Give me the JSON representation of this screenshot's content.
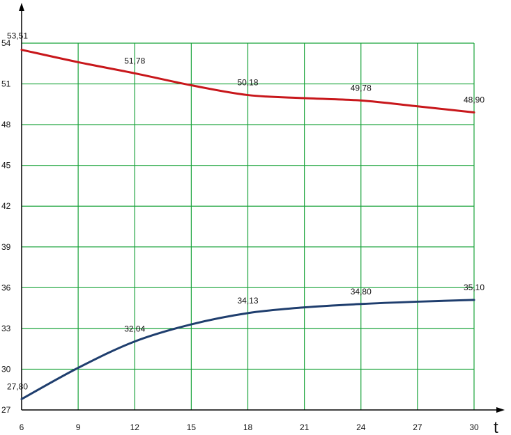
{
  "chart_data": {
    "type": "line",
    "xlabel": "t",
    "ylabel": "",
    "xlim": [
      6,
      30
    ],
    "ylim": [
      27,
      54
    ],
    "x_ticks": [
      6,
      9,
      12,
      15,
      18,
      21,
      24,
      27,
      30
    ],
    "y_ticks": [
      27,
      30,
      33,
      36,
      39,
      42,
      45,
      48,
      51,
      54
    ],
    "grid": true,
    "colors": {
      "grid": "#19a33a",
      "axis": "#000000"
    },
    "series": [
      {
        "color": "#c8171b",
        "x": [
          6,
          9,
          12,
          15,
          18,
          21,
          24,
          27,
          30
        ],
        "y": [
          53.51,
          52.6,
          51.78,
          50.9,
          50.18,
          49.95,
          49.78,
          49.35,
          48.9
        ],
        "labels": [
          {
            "x": 6,
            "y": 53.51,
            "text": "53,51"
          },
          {
            "x": 12,
            "y": 51.78,
            "text": "51,78"
          },
          {
            "x": 18,
            "y": 50.18,
            "text": "50,18"
          },
          {
            "x": 24,
            "y": 49.78,
            "text": "49,78"
          },
          {
            "x": 30,
            "y": 48.9,
            "text": "48,90"
          }
        ]
      },
      {
        "color": "#1f3e6e",
        "x": [
          6,
          9,
          12,
          15,
          18,
          21,
          24,
          27,
          30
        ],
        "y": [
          27.8,
          30.1,
          32.04,
          33.3,
          34.13,
          34.55,
          34.8,
          34.97,
          35.1
        ],
        "labels": [
          {
            "x": 6,
            "y": 27.8,
            "text": "27,80"
          },
          {
            "x": 12,
            "y": 32.04,
            "text": "32,04"
          },
          {
            "x": 18,
            "y": 34.13,
            "text": "34,13"
          },
          {
            "x": 24,
            "y": 34.8,
            "text": "34,80"
          },
          {
            "x": 30,
            "y": 35.1,
            "text": "35,10"
          }
        ]
      }
    ]
  }
}
